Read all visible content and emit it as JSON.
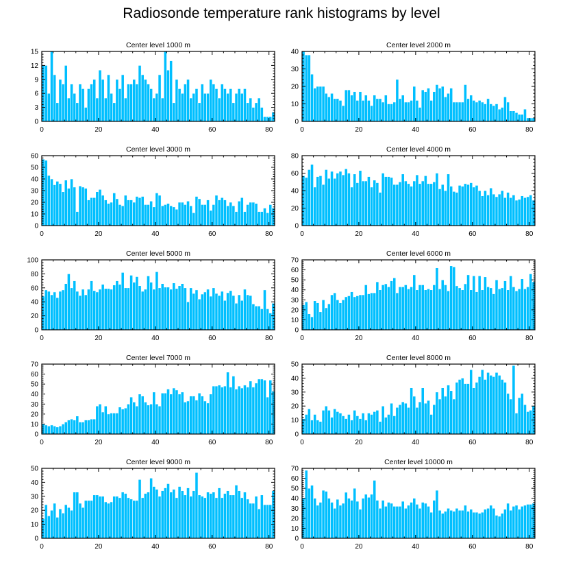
{
  "title": "Radiosonde temperature rank histograms by level",
  "colors": {
    "bar": "#00bfff",
    "bar_edge": "#ffffff",
    "axis": "#000000"
  },
  "chart_data": [
    {
      "type": "bar",
      "title": "Center level 1000 m",
      "xlabel": "",
      "ylabel": "",
      "xlim": [
        0,
        82
      ],
      "ylim": [
        0,
        15
      ],
      "xticks": [
        0,
        20,
        40,
        60,
        80
      ],
      "yticks": [
        0,
        3,
        6,
        9,
        12,
        15
      ],
      "x_start": 0,
      "values": [
        12,
        12,
        6,
        15,
        10,
        4,
        9,
        8,
        12,
        5,
        8,
        6,
        4,
        8,
        7,
        3,
        7,
        8,
        9,
        5,
        11,
        9,
        5,
        10,
        6,
        4,
        9,
        7,
        10,
        5,
        8,
        8,
        9,
        8,
        12,
        10,
        9,
        8,
        7,
        5,
        6,
        10,
        5,
        15,
        11,
        13,
        4,
        9,
        7,
        6,
        8,
        9,
        5,
        6,
        7,
        4,
        8,
        6,
        6,
        9,
        8,
        7,
        5,
        8,
        7,
        6,
        7,
        4,
        6,
        7,
        6,
        7,
        4,
        5,
        3,
        4,
        5,
        3,
        1,
        1,
        1,
        2
      ]
    },
    {
      "type": "bar",
      "title": "Center level 2000 m",
      "xlabel": "",
      "ylabel": "",
      "xlim": [
        0,
        82
      ],
      "ylim": [
        0,
        40
      ],
      "xticks": [
        0,
        20,
        40,
        60,
        80
      ],
      "yticks": [
        0,
        10,
        20,
        30,
        40
      ],
      "x_start": 0,
      "values": [
        40,
        38,
        38,
        27,
        19,
        20,
        20,
        20,
        16,
        14,
        16,
        13,
        13,
        12,
        9,
        18,
        18,
        15,
        17,
        12,
        17,
        12,
        15,
        12,
        9,
        15,
        13,
        13,
        11,
        15,
        10,
        10,
        11,
        24,
        13,
        15,
        11,
        11,
        12,
        20,
        12,
        8,
        18,
        17,
        19,
        12,
        17,
        21,
        19,
        20,
        14,
        16,
        19,
        11,
        11,
        11,
        11,
        21,
        13,
        15,
        12,
        11,
        12,
        11,
        10,
        13,
        10,
        9,
        10,
        7,
        8,
        14,
        11,
        6,
        6,
        5,
        4,
        4,
        7,
        2,
        2,
        2
      ]
    },
    {
      "type": "bar",
      "title": "Center level 3000 m",
      "xlabel": "",
      "ylabel": "",
      "xlim": [
        0,
        82
      ],
      "ylim": [
        0,
        60
      ],
      "xticks": [
        0,
        20,
        40,
        60,
        80
      ],
      "yticks": [
        0,
        10,
        20,
        30,
        40,
        50,
        60
      ],
      "x_start": 0,
      "values": [
        57,
        56,
        43,
        40,
        35,
        38,
        36,
        29,
        39,
        32,
        40,
        33,
        12,
        34,
        33,
        32,
        22,
        24,
        24,
        29,
        31,
        26,
        22,
        19,
        20,
        28,
        23,
        18,
        17,
        26,
        22,
        22,
        20,
        25,
        24,
        25,
        18,
        18,
        21,
        16,
        28,
        26,
        17,
        18,
        19,
        17,
        16,
        14,
        20,
        20,
        18,
        21,
        17,
        11,
        25,
        23,
        18,
        18,
        22,
        13,
        18,
        26,
        22,
        24,
        22,
        17,
        20,
        17,
        12,
        21,
        24,
        12,
        18,
        20,
        20,
        19,
        12,
        12,
        15,
        11,
        18,
        15
      ]
    },
    {
      "type": "bar",
      "title": "Center level 4000 m",
      "xlabel": "",
      "ylabel": "",
      "xlim": [
        0,
        82
      ],
      "ylim": [
        0,
        80
      ],
      "xticks": [
        0,
        20,
        40,
        60,
        80
      ],
      "yticks": [
        0,
        20,
        40,
        60,
        80
      ],
      "x_start": 0,
      "values": [
        57,
        55,
        64,
        70,
        44,
        56,
        57,
        47,
        64,
        54,
        62,
        54,
        60,
        62,
        58,
        65,
        60,
        44,
        59,
        49,
        63,
        51,
        51,
        56,
        44,
        52,
        49,
        38,
        60,
        56,
        56,
        55,
        47,
        47,
        50,
        59,
        51,
        48,
        45,
        51,
        58,
        48,
        51,
        57,
        48,
        48,
        50,
        60,
        42,
        47,
        40,
        59,
        45,
        39,
        38,
        46,
        45,
        48,
        47,
        49,
        44,
        46,
        40,
        34,
        40,
        35,
        43,
        36,
        33,
        36,
        40,
        32,
        38,
        32,
        35,
        29,
        30,
        34,
        32,
        33,
        35,
        29
      ]
    },
    {
      "type": "bar",
      "title": "Center level 5000 m",
      "xlabel": "",
      "ylabel": "",
      "xlim": [
        0,
        82
      ],
      "ylim": [
        0,
        100
      ],
      "xticks": [
        0,
        20,
        40,
        60,
        80
      ],
      "yticks": [
        0,
        20,
        40,
        60,
        80,
        100
      ],
      "x_start": 0,
      "values": [
        48,
        57,
        55,
        50,
        54,
        46,
        55,
        57,
        66,
        80,
        60,
        70,
        55,
        49,
        58,
        50,
        58,
        70,
        56,
        54,
        58,
        65,
        59,
        59,
        58,
        64,
        70,
        65,
        82,
        60,
        60,
        78,
        68,
        76,
        63,
        55,
        58,
        77,
        68,
        58,
        83,
        60,
        66,
        61,
        61,
        58,
        67,
        59,
        63,
        66,
        60,
        40,
        60,
        52,
        57,
        44,
        51,
        54,
        58,
        48,
        60,
        52,
        49,
        55,
        42,
        53,
        56,
        49,
        38,
        50,
        42,
        58,
        50,
        49,
        37,
        34,
        34,
        30,
        57,
        30,
        24,
        38
      ]
    },
    {
      "type": "bar",
      "title": "Center level 6000 m",
      "xlabel": "",
      "ylabel": "",
      "xlim": [
        0,
        82
      ],
      "ylim": [
        0,
        70
      ],
      "xticks": [
        0,
        20,
        40,
        60,
        80
      ],
      "yticks": [
        0,
        10,
        20,
        30,
        40,
        50,
        60,
        70
      ],
      "x_start": 0,
      "values": [
        25,
        28,
        16,
        13,
        29,
        27,
        18,
        30,
        22,
        26,
        35,
        37,
        30,
        27,
        30,
        33,
        34,
        38,
        33,
        34,
        35,
        35,
        45,
        36,
        37,
        37,
        48,
        40,
        45,
        46,
        43,
        49,
        52,
        37,
        43,
        43,
        45,
        41,
        43,
        55,
        40,
        45,
        45,
        40,
        41,
        40,
        45,
        62,
        41,
        50,
        45,
        39,
        64,
        63,
        44,
        42,
        40,
        46,
        55,
        40,
        54,
        38,
        54,
        40,
        53,
        43,
        42,
        36,
        50,
        41,
        42,
        49,
        40,
        54,
        43,
        39,
        41,
        51,
        41,
        43,
        56,
        48
      ]
    },
    {
      "type": "bar",
      "title": "Center level 7000 m",
      "xlabel": "",
      "ylabel": "",
      "xlim": [
        0,
        82
      ],
      "ylim": [
        0,
        70
      ],
      "xticks": [
        0,
        20,
        40,
        60,
        80
      ],
      "yticks": [
        0,
        10,
        20,
        30,
        40,
        50,
        60,
        70
      ],
      "x_start": 0,
      "values": [
        10,
        9,
        8,
        9,
        8,
        7,
        8,
        10,
        12,
        14,
        15,
        14,
        18,
        12,
        12,
        14,
        14,
        15,
        15,
        28,
        30,
        22,
        28,
        20,
        21,
        21,
        21,
        27,
        25,
        26,
        30,
        37,
        32,
        28,
        40,
        38,
        32,
        29,
        30,
        42,
        30,
        28,
        41,
        41,
        45,
        40,
        46,
        44,
        40,
        42,
        32,
        33,
        38,
        38,
        34,
        41,
        38,
        33,
        31,
        40,
        48,
        48,
        49,
        47,
        48,
        62,
        47,
        58,
        45,
        48,
        46,
        49,
        47,
        53,
        47,
        51,
        55,
        55,
        54,
        37,
        54,
        43
      ]
    },
    {
      "type": "bar",
      "title": "Center level 8000 m",
      "xlabel": "",
      "ylabel": "",
      "xlim": [
        0,
        82
      ],
      "ylim": [
        0,
        50
      ],
      "xticks": [
        0,
        20,
        40,
        60,
        80
      ],
      "yticks": [
        0,
        10,
        20,
        30,
        40,
        50
      ],
      "x_start": 0,
      "values": [
        11,
        14,
        18,
        10,
        14,
        10,
        9,
        17,
        20,
        17,
        12,
        18,
        16,
        15,
        13,
        11,
        14,
        10,
        17,
        13,
        11,
        15,
        10,
        15,
        14,
        16,
        17,
        9,
        20,
        12,
        14,
        22,
        13,
        19,
        21,
        23,
        22,
        19,
        33,
        27,
        19,
        23,
        33,
        22,
        24,
        14,
        21,
        30,
        25,
        33,
        27,
        35,
        31,
        25,
        37,
        39,
        40,
        36,
        36,
        46,
        33,
        37,
        41,
        46,
        39,
        44,
        42,
        41,
        44,
        42,
        39,
        37,
        29,
        25,
        49,
        15,
        26,
        29,
        21,
        16,
        17,
        20
      ]
    },
    {
      "type": "bar",
      "title": "Center level 9000 m",
      "xlabel": "",
      "ylabel": "",
      "xlim": [
        0,
        82
      ],
      "ylim": [
        0,
        50
      ],
      "xticks": [
        0,
        20,
        40,
        60,
        80
      ],
      "yticks": [
        0,
        10,
        20,
        30,
        40,
        50
      ],
      "x_start": 0,
      "values": [
        14,
        24,
        16,
        20,
        25,
        15,
        21,
        18,
        24,
        22,
        20,
        33,
        33,
        25,
        22,
        27,
        27,
        27,
        31,
        31,
        30,
        30,
        26,
        25,
        26,
        30,
        30,
        29,
        33,
        32,
        29,
        28,
        27,
        27,
        42,
        29,
        32,
        33,
        43,
        37,
        35,
        30,
        34,
        36,
        39,
        33,
        35,
        29,
        37,
        34,
        31,
        36,
        30,
        34,
        47,
        31,
        30,
        29,
        33,
        32,
        33,
        29,
        36,
        29,
        32,
        34,
        31,
        31,
        38,
        34,
        29,
        33,
        28,
        25,
        25,
        30,
        21,
        31,
        24,
        24,
        24,
        34
      ]
    },
    {
      "type": "bar",
      "title": "Center level 10000 m",
      "xlabel": "",
      "ylabel": "",
      "xlim": [
        0,
        82
      ],
      "ylim": [
        0,
        70
      ],
      "xticks": [
        0,
        20,
        40,
        60,
        80
      ],
      "yticks": [
        0,
        10,
        20,
        30,
        40,
        50,
        60,
        70
      ],
      "x_start": 0,
      "values": [
        40,
        68,
        50,
        53,
        40,
        33,
        36,
        48,
        47,
        40,
        36,
        30,
        39,
        33,
        35,
        46,
        40,
        38,
        50,
        37,
        29,
        40,
        44,
        41,
        44,
        58,
        38,
        30,
        38,
        32,
        36,
        35,
        32,
        32,
        32,
        37,
        30,
        33,
        36,
        40,
        34,
        30,
        36,
        35,
        32,
        26,
        38,
        48,
        28,
        25,
        27,
        30,
        28,
        27,
        30,
        28,
        28,
        33,
        27,
        29,
        26,
        26,
        25,
        26,
        29,
        30,
        33,
        30,
        23,
        22,
        25,
        29,
        35,
        28,
        32,
        33,
        29,
        32,
        33,
        34,
        34,
        35
      ]
    }
  ]
}
